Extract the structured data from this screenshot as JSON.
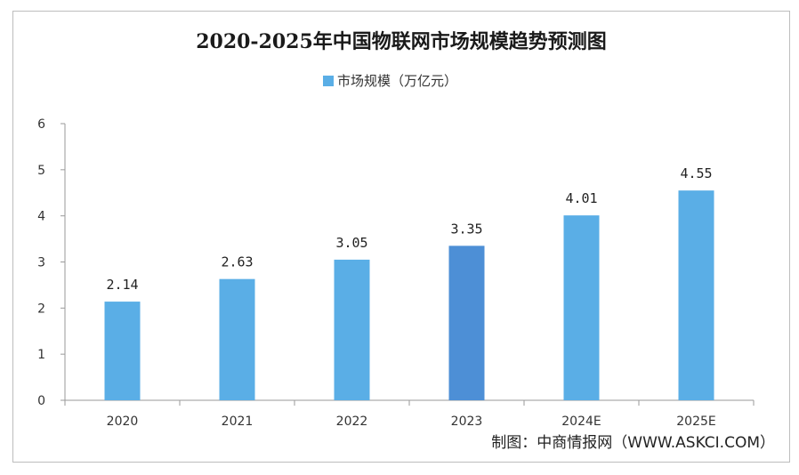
{
  "chart_data": {
    "type": "bar",
    "title": "2020-2025年中国物联网市场规模趋势预测图",
    "categories": [
      "2020",
      "2021",
      "2022",
      "2023",
      "2024E",
      "2025E"
    ],
    "series": [
      {
        "name": "市场规模（万亿元）",
        "values": [
          2.14,
          2.63,
          3.05,
          3.35,
          4.01,
          4.55
        ]
      }
    ],
    "data_labels": [
      "2.14",
      "2.63",
      "3.05",
      "3.35",
      "4.01",
      "4.55"
    ],
    "yticks": [
      "0",
      "1",
      "2",
      "3",
      "4",
      "5",
      "6"
    ],
    "ylim": [
      0,
      6
    ],
    "xlabel": "",
    "ylabel": "",
    "legend_position": "top-center",
    "grid": false,
    "bar_color": "#5aaee6",
    "highlight_color": "#4d8fd6",
    "source": "制图：中商情报网（WWW.ASKCI.COM）"
  }
}
